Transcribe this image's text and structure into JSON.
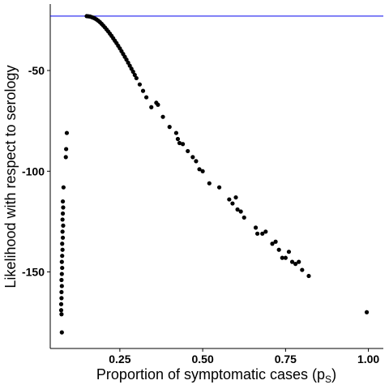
{
  "chart_data": {
    "type": "scatter",
    "xlabel": "Proportion of symptomatic cases (p",
    "xlabel_subscript": "S",
    "xlabel_suffix": ")",
    "ylabel": "Likelihood with respect to serology",
    "xlim": [
      0.04,
      1.045
    ],
    "ylim": [
      -188,
      -17
    ],
    "x_ticks": [
      0.25,
      0.5,
      0.75,
      1.0
    ],
    "x_tick_labels": [
      "0.25",
      "0.50",
      "0.75",
      "1.00"
    ],
    "y_ticks": [
      -50,
      -100,
      -150
    ],
    "y_tick_labels": [
      "-50",
      "-100",
      "-150"
    ],
    "grid": false,
    "reference_line": {
      "y": -23,
      "color": "#0000ee"
    },
    "point_color": "#000000",
    "points": [
      [
        0.15,
        -23
      ],
      [
        0.155,
        -23.1
      ],
      [
        0.16,
        -23.2
      ],
      [
        0.165,
        -23.5
      ],
      [
        0.17,
        -23.8
      ],
      [
        0.175,
        -24.2
      ],
      [
        0.18,
        -24.7
      ],
      [
        0.185,
        -25.3
      ],
      [
        0.19,
        -26
      ],
      [
        0.195,
        -26.8
      ],
      [
        0.2,
        -27.7
      ],
      [
        0.205,
        -28.6
      ],
      [
        0.21,
        -29.6
      ],
      [
        0.215,
        -30.6
      ],
      [
        0.22,
        -31.7
      ],
      [
        0.225,
        -32.8
      ],
      [
        0.23,
        -34
      ],
      [
        0.235,
        -35.2
      ],
      [
        0.24,
        -36.4
      ],
      [
        0.245,
        -37.7
      ],
      [
        0.25,
        -39
      ],
      [
        0.255,
        -40.4
      ],
      [
        0.26,
        -41.8
      ],
      [
        0.265,
        -43.2
      ],
      [
        0.27,
        -44.6
      ],
      [
        0.275,
        -46.1
      ],
      [
        0.28,
        -47.6
      ],
      [
        0.285,
        -49.1
      ],
      [
        0.29,
        -50.6
      ],
      [
        0.295,
        -52.2
      ],
      [
        0.3,
        -53.8
      ],
      [
        0.31,
        -56.9
      ],
      [
        0.32,
        -60.1
      ],
      [
        0.33,
        -63.3
      ],
      [
        0.345,
        -68.2
      ],
      [
        0.36,
        -66
      ],
      [
        0.365,
        -67
      ],
      [
        0.38,
        -73
      ],
      [
        0.4,
        -78
      ],
      [
        0.42,
        -81
      ],
      [
        0.425,
        -84
      ],
      [
        0.43,
        -86
      ],
      [
        0.44,
        -86.5
      ],
      [
        0.455,
        -90
      ],
      [
        0.47,
        -93
      ],
      [
        0.48,
        -95
      ],
      [
        0.49,
        -99
      ],
      [
        0.5,
        -100
      ],
      [
        0.52,
        -106
      ],
      [
        0.55,
        -108
      ],
      [
        0.58,
        -114
      ],
      [
        0.59,
        -116
      ],
      [
        0.6,
        -113
      ],
      [
        0.605,
        -119
      ],
      [
        0.615,
        -120
      ],
      [
        0.625,
        -123
      ],
      [
        0.66,
        -128
      ],
      [
        0.665,
        -131
      ],
      [
        0.68,
        -131
      ],
      [
        0.69,
        -130
      ],
      [
        0.71,
        -136
      ],
      [
        0.72,
        -135
      ],
      [
        0.73,
        -139
      ],
      [
        0.74,
        -143
      ],
      [
        0.75,
        -143
      ],
      [
        0.76,
        -140
      ],
      [
        0.77,
        -145
      ],
      [
        0.78,
        -146
      ],
      [
        0.79,
        -145
      ],
      [
        0.8,
        -149
      ],
      [
        0.82,
        -152
      ],
      [
        0.09,
        -81
      ],
      [
        0.088,
        -89
      ],
      [
        0.087,
        -93
      ],
      [
        0.08,
        -108
      ],
      [
        0.078,
        -115
      ],
      [
        0.079,
        -118
      ],
      [
        0.078,
        -121
      ],
      [
        0.077,
        -124
      ],
      [
        0.079,
        -127
      ],
      [
        0.077,
        -130
      ],
      [
        0.078,
        -133
      ],
      [
        0.076,
        -136
      ],
      [
        0.077,
        -139
      ],
      [
        0.076,
        -142
      ],
      [
        0.075,
        -145
      ],
      [
        0.076,
        -148
      ],
      [
        0.075,
        -151
      ],
      [
        0.074,
        -154
      ],
      [
        0.075,
        -157
      ],
      [
        0.074,
        -160
      ],
      [
        0.074,
        -163
      ],
      [
        0.073,
        -166
      ],
      [
        0.073,
        -169
      ],
      [
        0.074,
        -171
      ],
      [
        0.075,
        -180
      ],
      [
        0.995,
        -170
      ]
    ]
  }
}
